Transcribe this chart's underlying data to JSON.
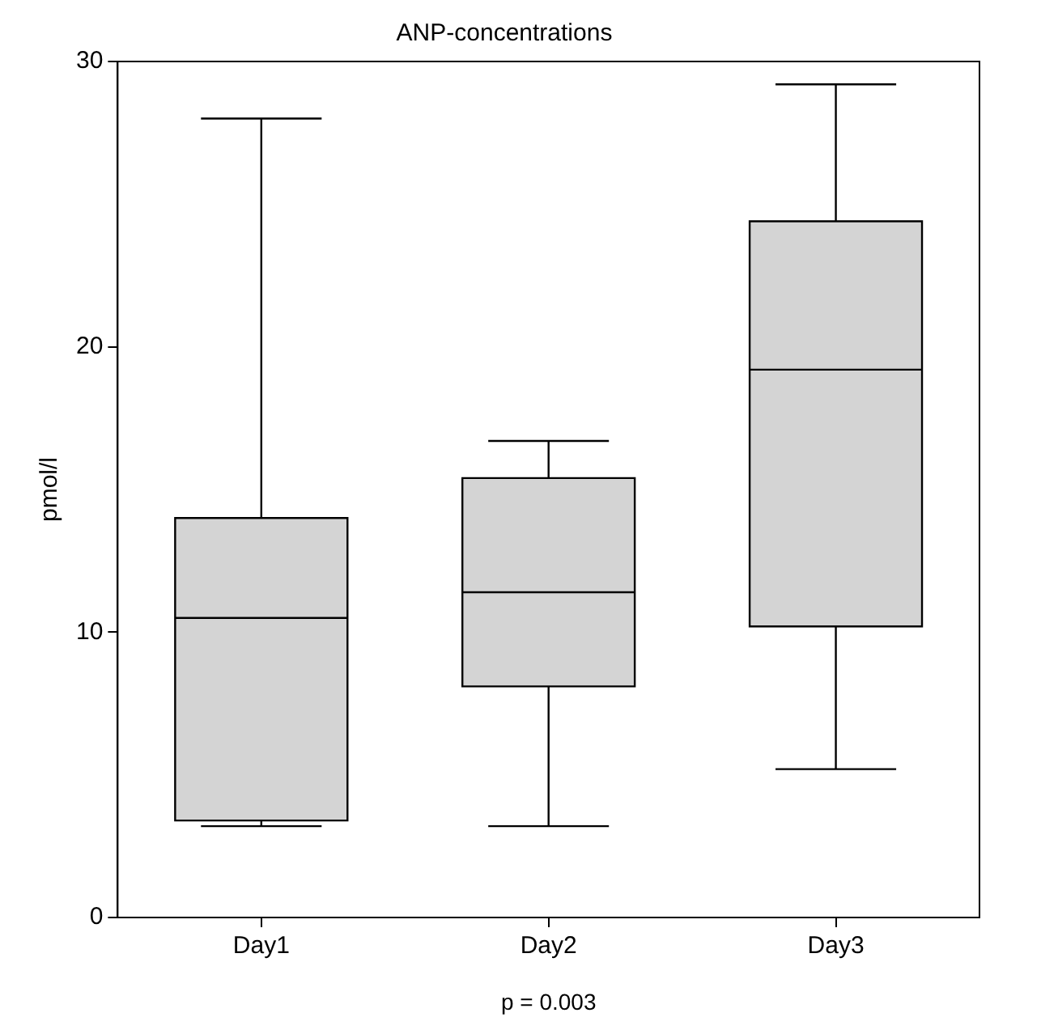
{
  "chart_data": {
    "type": "box",
    "title": "ANP-concentrations",
    "ylabel": "pmol/l",
    "categories": [
      "Day1",
      "Day2",
      "Day3"
    ],
    "color": "#d4d4d4",
    "ylim": [
      0,
      30
    ],
    "yticks": [
      0,
      10,
      20,
      30
    ],
    "grid": false,
    "legend": false,
    "boxes": [
      {
        "low": 3.2,
        "q1": 3.4,
        "median": 10.5,
        "q3": 14.0,
        "high": 28.0
      },
      {
        "low": 3.2,
        "q1": 8.1,
        "median": 11.4,
        "q3": 15.4,
        "high": 16.7
      },
      {
        "low": 5.2,
        "q1": 10.2,
        "median": 19.2,
        "q3": 24.4,
        "high": 29.2
      }
    ],
    "annotations": [
      "p = 0.003"
    ]
  }
}
